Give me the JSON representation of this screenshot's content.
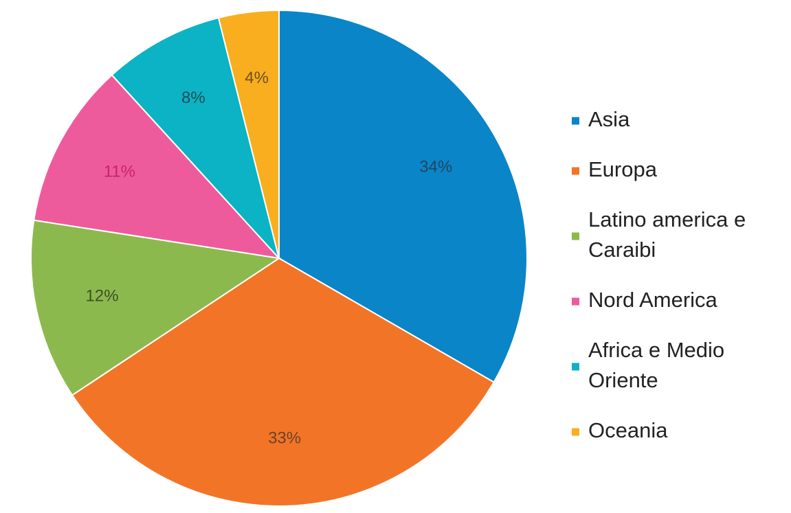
{
  "chart_data": {
    "type": "pie",
    "title": "",
    "start_angle_deg": 0,
    "direction": "clockwise",
    "legend_position": "right",
    "slices": [
      {
        "label": "Asia",
        "legend_lines": [
          "Asia"
        ],
        "value": 34,
        "display": "34%",
        "color": "#0a85c8",
        "label_color": "#23465f"
      },
      {
        "label": "Europa",
        "legend_lines": [
          "Europa"
        ],
        "value": 33,
        "display": "33%",
        "color": "#f27527",
        "label_color": "#6b4226"
      },
      {
        "label": "Latino america e Caraibi",
        "legend_lines": [
          "Latino america e",
          "Caraibi"
        ],
        "value": 12,
        "display": "12%",
        "color": "#8cb94e",
        "label_color": "#3c4f27"
      },
      {
        "label": "Nord America",
        "legend_lines": [
          "Nord America"
        ],
        "value": 11,
        "display": "11%",
        "color": "#ee5b9c",
        "label_color": "#c8226d"
      },
      {
        "label": "Africa e Medio Oriente",
        "legend_lines": [
          "Africa e Medio",
          "Oriente"
        ],
        "value": 8,
        "display": "8%",
        "color": "#0bb3c4",
        "label_color": "#1d4f58"
      },
      {
        "label": "Oceania",
        "legend_lines": [
          "Oceania"
        ],
        "value": 4,
        "display": "4%",
        "color": "#f9ae1f",
        "label_color": "#6b5120"
      }
    ]
  }
}
